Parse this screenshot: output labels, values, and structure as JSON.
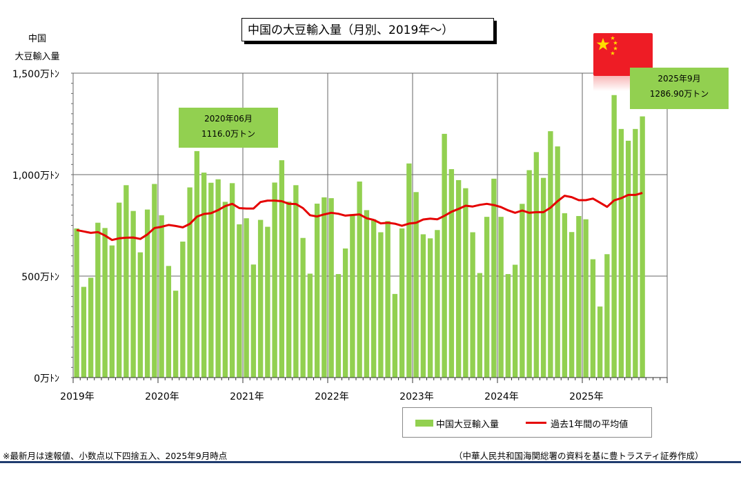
{
  "title": "中国の大豆輸入量（月別、2019年〜）",
  "ylabel_line1": "中国",
  "ylabel_line2": "大豆輸入量",
  "annotations": [
    {
      "line1": "2020年06月",
      "line2": "1116.0万トン"
    },
    {
      "line1": "2025年9月",
      "line2": "1286.90万トン"
    }
  ],
  "legend": {
    "bar": "中国大豆輸入量",
    "line": "過去1年間の平均値"
  },
  "footnote_left": "※最新月は速報値、小数点以下四捨五入、2025年9月時点",
  "footnote_right": "（中華人民共和国海関総署の資料を基に豊トラスティ証券作成）",
  "colors": {
    "bar": "#92d050",
    "line": "#e50000",
    "flag": "#ee1c25",
    "star": "#ffde00"
  },
  "chart_data": {
    "type": "bar",
    "xlabel": "",
    "ylabel": "中国 大豆輸入量",
    "ylim": [
      0,
      1500
    ],
    "yticks": [
      {
        "value": 0,
        "label": "0万ﾄﾝ"
      },
      {
        "value": 500,
        "label": "500万ﾄﾝ"
      },
      {
        "value": 1000,
        "label": "1,000万ﾄﾝ"
      },
      {
        "value": 1500,
        "label": "1,500万ﾄﾝ"
      }
    ],
    "year_labels": [
      "2019年",
      "2020年",
      "2021年",
      "2022年",
      "2023年",
      "2024年",
      "2025年"
    ],
    "start": "2019-01",
    "grid": true,
    "legend_position": "bottom-right",
    "series": [
      {
        "name": "中国大豆輸入量",
        "type": "bar",
        "values": [
          735,
          447,
          492,
          763,
          737,
          651,
          862,
          948,
          821,
          617,
          828,
          954,
          800,
          550,
          428,
          670,
          937,
          1116,
          1010,
          960,
          977,
          866,
          958,
          755,
          785,
          557,
          777,
          743,
          961,
          1071,
          867,
          948,
          688,
          512,
          857,
          888,
          884,
          510,
          636,
          805,
          966,
          825,
          780,
          716,
          771,
          412,
          735,
          1055,
          914,
          706,
          686,
          727,
          1201,
          1027,
          973,
          933,
          716,
          515,
          792,
          980,
          792,
          510,
          556,
          856,
          1022,
          1111,
          984,
          1214,
          1139,
          810,
          717,
          796,
          780,
          583,
          350,
          608,
          1392,
          1225,
          1167,
          1225,
          1287
        ]
      },
      {
        "name": "過去1年間の平均値",
        "type": "line",
        "values": [
          727,
          720,
          713,
          717,
          700,
          678,
          686,
          689,
          690,
          683,
          705,
          737,
          743,
          752,
          747,
          740,
          757,
          793,
          806,
          810,
          825,
          845,
          856,
          835,
          833,
          833,
          865,
          872,
          872,
          869,
          856,
          855,
          835,
          800,
          794,
          804,
          812,
          807,
          798,
          801,
          804,
          785,
          777,
          760,
          763,
          758,
          748,
          759,
          763,
          779,
          783,
          780,
          797,
          817,
          831,
          847,
          843,
          851,
          856,
          850,
          840,
          824,
          812,
          823,
          812,
          815,
          815,
          837,
          869,
          896,
          889,
          874,
          874,
          882,
          862,
          841,
          873,
          884,
          900,
          900,
          910
        ]
      }
    ]
  }
}
